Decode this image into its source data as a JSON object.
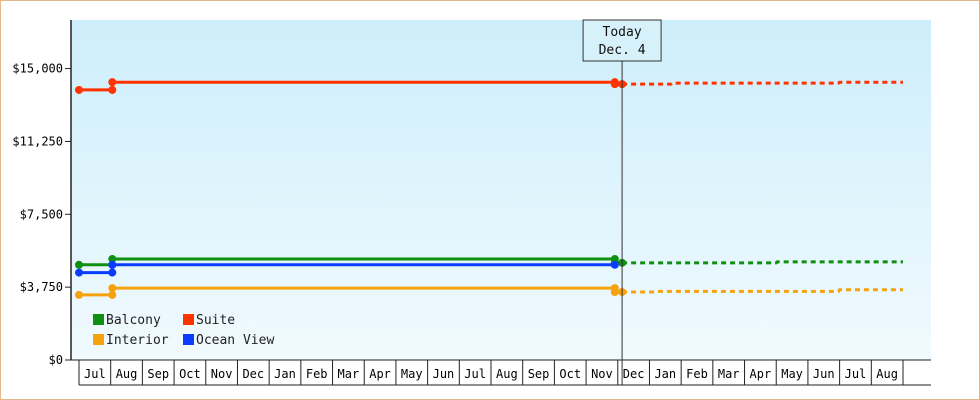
{
  "chart_data": {
    "type": "line",
    "x_axis": {
      "months": [
        "Jul",
        "Aug",
        "Sep",
        "Oct",
        "Nov",
        "Dec",
        "Jan",
        "Feb",
        "Mar",
        "Apr",
        "May",
        "Jun",
        "Jul",
        "Aug",
        "Sep",
        "Oct",
        "Nov",
        "Dec",
        "Jan",
        "Feb",
        "Mar",
        "Apr",
        "May",
        "Jun",
        "Jul",
        "Aug"
      ],
      "start": "2015-07-01",
      "end": "2017-08-31"
    },
    "y_axis": {
      "ticks": [
        "$0",
        "$3,750",
        "$7,500",
        "$11,250",
        "$15,000"
      ],
      "tick_values": [
        0,
        3750,
        7500,
        11250,
        15000
      ],
      "ylim": [
        0,
        17500
      ]
    },
    "today": {
      "line1": "Today",
      "line2": "Dec. 4",
      "date": "2016-12-04"
    },
    "legend": [
      {
        "name": "Balcony",
        "color": "#109010"
      },
      {
        "name": "Suite",
        "color": "#ff3300"
      },
      {
        "name": "Interior",
        "color": "#f5a20d"
      },
      {
        "name": "Ocean View",
        "color": "#0a3cff"
      }
    ],
    "series": [
      {
        "name": "Balcony",
        "color": "#109010",
        "points": [
          {
            "date": "2015-07-01",
            "value": 4900
          },
          {
            "date": "2015-08-02",
            "value": 4900
          },
          {
            "date": "2015-08-02",
            "value": 5200
          },
          {
            "date": "2016-11-27",
            "value": 5200
          },
          {
            "date": "2016-11-27",
            "value": 5000
          },
          {
            "date": "2016-12-04",
            "value": 5000
          }
        ],
        "forecast": [
          {
            "date": "2016-12-04",
            "value": 5000
          },
          {
            "date": "2017-05-01",
            "value": 5000
          },
          {
            "date": "2017-05-02",
            "value": 5050
          },
          {
            "date": "2017-08-31",
            "value": 5050
          }
        ]
      },
      {
        "name": "Suite",
        "color": "#ff3300",
        "points": [
          {
            "date": "2015-07-01",
            "value": 13900
          },
          {
            "date": "2015-08-02",
            "value": 13900
          },
          {
            "date": "2015-08-02",
            "value": 14300
          },
          {
            "date": "2016-11-27",
            "value": 14300
          },
          {
            "date": "2016-11-27",
            "value": 14200
          },
          {
            "date": "2016-12-04",
            "value": 14200
          }
        ],
        "forecast": [
          {
            "date": "2016-12-04",
            "value": 14200
          },
          {
            "date": "2017-01-20",
            "value": 14200
          },
          {
            "date": "2017-01-21",
            "value": 14250
          },
          {
            "date": "2017-06-30",
            "value": 14250
          },
          {
            "date": "2017-07-01",
            "value": 14300
          },
          {
            "date": "2017-08-31",
            "value": 14300
          }
        ]
      },
      {
        "name": "Interior",
        "color": "#f5a20d",
        "points": [
          {
            "date": "2015-07-01",
            "value": 3350
          },
          {
            "date": "2015-08-02",
            "value": 3350
          },
          {
            "date": "2015-08-02",
            "value": 3700
          },
          {
            "date": "2016-11-27",
            "value": 3700
          },
          {
            "date": "2016-11-27",
            "value": 3500
          },
          {
            "date": "2016-12-04",
            "value": 3500
          }
        ],
        "forecast": [
          {
            "date": "2016-12-04",
            "value": 3500
          },
          {
            "date": "2017-01-05",
            "value": 3500
          },
          {
            "date": "2017-01-06",
            "value": 3530
          },
          {
            "date": "2017-06-30",
            "value": 3530
          },
          {
            "date": "2017-07-01",
            "value": 3620
          },
          {
            "date": "2017-08-31",
            "value": 3620
          }
        ]
      },
      {
        "name": "Ocean View",
        "color": "#0a3cff",
        "points": [
          {
            "date": "2015-07-01",
            "value": 4500
          },
          {
            "date": "2015-08-02",
            "value": 4500
          },
          {
            "date": "2015-08-02",
            "value": 4900
          },
          {
            "date": "2016-11-27",
            "value": 4900
          }
        ],
        "forecast": []
      }
    ],
    "markers": [
      {
        "series": "Balcony",
        "date": "2015-07-01",
        "value": 4900
      },
      {
        "series": "Balcony",
        "date": "2015-08-02",
        "value": 4900
      },
      {
        "series": "Balcony",
        "date": "2015-08-02",
        "value": 5200
      },
      {
        "series": "Balcony",
        "date": "2016-11-27",
        "value": 5200
      },
      {
        "series": "Balcony",
        "date": "2016-11-27",
        "value": 5000
      },
      {
        "series": "Balcony",
        "date": "2016-12-04",
        "value": 5000
      },
      {
        "series": "Suite",
        "date": "2015-07-01",
        "value": 13900
      },
      {
        "series": "Suite",
        "date": "2015-08-02",
        "value": 13900
      },
      {
        "series": "Suite",
        "date": "2015-08-02",
        "value": 14300
      },
      {
        "series": "Suite",
        "date": "2016-11-27",
        "value": 14300
      },
      {
        "series": "Suite",
        "date": "2016-11-27",
        "value": 14200
      },
      {
        "series": "Suite",
        "date": "2016-12-04",
        "value": 14200
      },
      {
        "series": "Interior",
        "date": "2015-07-01",
        "value": 3350
      },
      {
        "series": "Interior",
        "date": "2015-08-02",
        "value": 3350
      },
      {
        "series": "Interior",
        "date": "2015-08-02",
        "value": 3700
      },
      {
        "series": "Interior",
        "date": "2016-11-27",
        "value": 3700
      },
      {
        "series": "Interior",
        "date": "2016-11-27",
        "value": 3500
      },
      {
        "series": "Interior",
        "date": "2016-12-04",
        "value": 3500
      },
      {
        "series": "Ocean View",
        "date": "2015-07-01",
        "value": 4500
      },
      {
        "series": "Ocean View",
        "date": "2015-08-02",
        "value": 4500
      },
      {
        "series": "Ocean View",
        "date": "2015-08-02",
        "value": 4900
      },
      {
        "series": "Ocean View",
        "date": "2016-11-27",
        "value": 4900
      }
    ]
  }
}
